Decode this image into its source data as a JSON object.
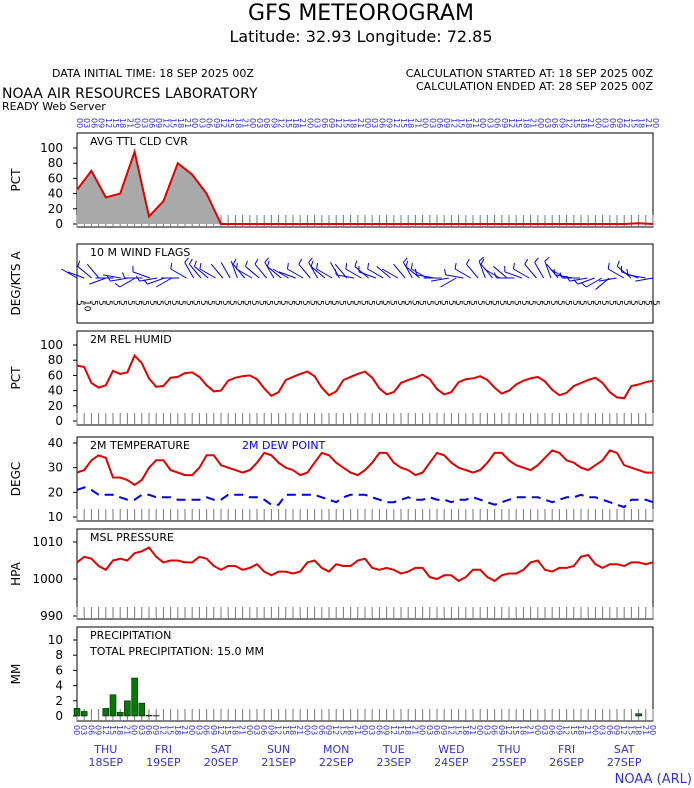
{
  "header": {
    "title": "GFS METEOROGRAM",
    "latlon": "Latitude: 32.93 Longitude:  72.85",
    "init_time": "DATA INITIAL TIME: 18 SEP 2025 00Z",
    "calc_started": "CALCULATION STARTED AT: 18 SEP 2025 00Z",
    "calc_ended": "CALCULATION ENDED AT: 28 SEP 2025 00Z",
    "lab": "NOAA AIR RESOURCES LABORATORY",
    "server": "READY Web Server",
    "credit": "NOAA (ARL)"
  },
  "days": [
    {
      "dow": "THU",
      "date": "18SEP"
    },
    {
      "dow": "FRI",
      "date": "19SEP"
    },
    {
      "dow": "SAT",
      "date": "20SEP"
    },
    {
      "dow": "SUN",
      "date": "21SEP"
    },
    {
      "dow": "MON",
      "date": "22SEP"
    },
    {
      "dow": "TUE",
      "date": "23SEP"
    },
    {
      "dow": "WED",
      "date": "24SEP"
    },
    {
      "dow": "THU",
      "date": "25SEP"
    },
    {
      "dow": "FRI",
      "date": "26SEP"
    },
    {
      "dow": "SAT",
      "date": "27SEP"
    }
  ],
  "colors": {
    "red": "#e00000",
    "blue": "#0000e0",
    "gray": "#a9a9a9",
    "green": "#007a00",
    "axis_label": "#3333cc"
  },
  "chart_data": [
    {
      "id": "cloud",
      "type": "area",
      "title": "AVG TTL CLD CVR",
      "ylabel": "PCT",
      "ylim": [
        0,
        100
      ],
      "yticks": [
        0,
        20,
        40,
        60,
        80,
        100
      ],
      "x_hours": [
        0,
        6,
        12,
        18,
        24,
        30,
        36,
        42,
        48,
        54,
        60,
        66,
        72,
        78,
        84,
        90,
        96,
        102,
        108,
        114,
        120,
        126,
        132,
        138,
        144,
        150,
        156,
        162,
        168,
        174,
        180,
        186,
        192,
        198,
        204,
        210,
        216,
        222,
        228,
        234,
        240
      ],
      "values": [
        45,
        70,
        35,
        40,
        95,
        10,
        30,
        80,
        65,
        40,
        0,
        0,
        0,
        0,
        0,
        0,
        0,
        0,
        0,
        0,
        0,
        0,
        0,
        0,
        0,
        0,
        0,
        0,
        0,
        0,
        0,
        0,
        0,
        0,
        0,
        0,
        0,
        0,
        0,
        1,
        0
      ]
    },
    {
      "id": "wind",
      "type": "barbs",
      "title": "10 M  WIND FLAGS",
      "ylabel": "DEG/KTS  A",
      "dirs": [
        300,
        290,
        310,
        320,
        250,
        270,
        280,
        260,
        240,
        270,
        290,
        260,
        250,
        240,
        270,
        300,
        330,
        320,
        310,
        300,
        320,
        330,
        340,
        320,
        300,
        310,
        320,
        330,
        310,
        300,
        290,
        300,
        320,
        330,
        310,
        300,
        330,
        320,
        280,
        300,
        310,
        290,
        300,
        310,
        300,
        320,
        330,
        310,
        300,
        280,
        270,
        260,
        240,
        280,
        300,
        320,
        340,
        320,
        300,
        310,
        270,
        290,
        300,
        320,
        330,
        340,
        320,
        300,
        280,
        270,
        260,
        250,
        240,
        230,
        260,
        300,
        310,
        290,
        280,
        260
      ],
      "speeds": [
        5,
        5,
        10,
        5,
        5,
        5,
        5,
        10,
        10,
        10,
        10,
        10,
        10,
        5,
        5,
        10,
        10,
        10,
        10,
        10,
        5,
        5,
        5,
        10,
        10,
        10,
        10,
        10,
        10,
        5,
        5,
        10,
        10,
        10,
        10,
        10,
        5,
        5,
        10,
        10,
        10,
        10,
        10,
        5,
        5,
        5,
        10,
        10,
        10,
        10,
        5,
        5,
        5,
        10,
        10,
        10,
        10,
        10,
        5,
        5,
        10,
        10,
        10,
        10,
        10,
        10,
        5,
        5,
        10,
        10,
        10,
        10,
        10,
        5,
        5,
        10,
        10,
        10,
        10,
        5
      ],
      "labels": [
        "5",
        "10",
        "5",
        "5",
        "5",
        "5",
        "5",
        "5",
        "5",
        "5",
        "5",
        "5",
        "5",
        "5",
        "5",
        "5",
        "5",
        "5",
        "5",
        "5",
        "5",
        "5",
        "5",
        "5",
        "5",
        "5",
        "5",
        "5",
        "5",
        "5",
        "5",
        "5",
        "5",
        "5",
        "5",
        "5",
        "5",
        "5",
        "5",
        "5",
        "5",
        "5",
        "5",
        "5",
        "5",
        "5",
        "5",
        "5",
        "5",
        "5",
        "5",
        "5",
        "5",
        "5",
        "5",
        "5",
        "5",
        "5",
        "5",
        "5",
        "5",
        "5",
        "5",
        "5",
        "5",
        "5",
        "5",
        "5",
        "5",
        "5",
        "5",
        "5",
        "5",
        "5",
        "5",
        "5",
        "5",
        "5",
        "5",
        "5"
      ]
    },
    {
      "id": "rh",
      "type": "line",
      "title": "2M REL HUMID",
      "ylabel": "PCT",
      "ylim": [
        0,
        100
      ],
      "yticks": [
        0,
        20,
        40,
        60,
        80,
        100
      ],
      "x_hours": [
        0,
        3,
        6,
        9,
        12,
        15,
        18,
        21,
        24,
        27,
        30,
        33,
        36,
        39,
        42,
        45,
        48,
        51,
        54,
        57,
        60,
        63,
        66,
        69,
        72,
        75,
        78,
        81,
        84,
        87,
        90,
        93,
        96,
        99,
        102,
        105,
        108,
        111,
        114,
        117,
        120,
        123,
        126,
        129,
        132,
        135,
        138,
        141,
        144,
        147,
        150,
        153,
        156,
        159,
        162,
        165,
        168,
        171,
        174,
        177,
        180,
        183,
        186,
        189,
        192,
        195,
        198,
        201,
        204,
        207,
        210,
        213,
        216,
        219,
        222,
        225,
        228,
        231,
        234,
        237,
        240
      ],
      "values": [
        73,
        71,
        50,
        44,
        47,
        66,
        62,
        64,
        86,
        76,
        56,
        45,
        46,
        57,
        58,
        63,
        64,
        58,
        47,
        39,
        40,
        53,
        57,
        59,
        60,
        55,
        43,
        33,
        38,
        54,
        58,
        62,
        65,
        59,
        44,
        34,
        39,
        54,
        58,
        62,
        65,
        57,
        43,
        35,
        38,
        50,
        54,
        57,
        61,
        55,
        42,
        35,
        38,
        51,
        55,
        56,
        59,
        54,
        44,
        36,
        40,
        48,
        53,
        56,
        58,
        52,
        41,
        34,
        37,
        46,
        50,
        54,
        57,
        50,
        38,
        31,
        30,
        46,
        48,
        51,
        53
      ]
    },
    {
      "id": "temp",
      "type": "line",
      "title": "2M TEMPERATURE",
      "title2": "2M  DEW POINT",
      "ylabel": "DEGC",
      "ylim": [
        10,
        40
      ],
      "yticks": [
        10,
        20,
        30,
        40
      ],
      "x_hours": [
        0,
        3,
        6,
        9,
        12,
        15,
        18,
        21,
        24,
        27,
        30,
        33,
        36,
        39,
        42,
        45,
        48,
        51,
        54,
        57,
        60,
        63,
        66,
        69,
        72,
        75,
        78,
        81,
        84,
        87,
        90,
        93,
        96,
        99,
        102,
        105,
        108,
        111,
        114,
        117,
        120,
        123,
        126,
        129,
        132,
        135,
        138,
        141,
        144,
        147,
        150,
        153,
        156,
        159,
        162,
        165,
        168,
        171,
        174,
        177,
        180,
        183,
        186,
        189,
        192,
        195,
        198,
        201,
        204,
        207,
        210,
        213,
        216,
        219,
        222,
        225,
        228,
        231,
        234,
        237,
        240
      ],
      "series": [
        {
          "name": "2M TEMPERATURE",
          "values": [
            28,
            29,
            33,
            35,
            34,
            26,
            26,
            25,
            23,
            25,
            30,
            33,
            33,
            29,
            28,
            27,
            27,
            30,
            35,
            35,
            31,
            30,
            29,
            28,
            29,
            32,
            36,
            35,
            32,
            30,
            29,
            27,
            28,
            32,
            36,
            35,
            32,
            30,
            28,
            27,
            29,
            32,
            36,
            36,
            32,
            30,
            29,
            27,
            28,
            32,
            36,
            35,
            32,
            30,
            29,
            28,
            29,
            32,
            36,
            36,
            33,
            31,
            30,
            29,
            31,
            34,
            37,
            36,
            33,
            32,
            30,
            29,
            31,
            33,
            37,
            36,
            31,
            30,
            29,
            28,
            28
          ]
        },
        {
          "name": "2M  DEW POINT",
          "values": [
            21,
            22,
            21,
            19,
            19,
            19,
            18,
            17,
            17,
            19,
            19,
            18,
            18,
            18,
            17,
            17,
            17,
            17,
            18,
            17,
            17,
            19,
            19,
            19,
            18,
            18,
            17,
            15,
            15,
            19,
            19,
            19,
            19,
            19,
            18,
            17,
            16,
            18,
            19,
            19,
            19,
            18,
            17,
            16,
            16,
            17,
            18,
            17,
            17,
            18,
            17,
            17,
            16,
            17,
            17,
            18,
            17,
            16,
            15,
            16,
            17,
            18,
            18,
            18,
            18,
            17,
            16,
            17,
            18,
            18,
            19,
            18,
            18,
            17,
            16,
            15,
            14,
            17,
            17,
            17,
            16
          ]
        }
      ]
    },
    {
      "id": "mslp",
      "type": "line",
      "title": "MSL PRESSURE",
      "ylabel": "HPA",
      "ylim": [
        990,
        1010
      ],
      "yticks": [
        990,
        1000,
        1010
      ],
      "x_hours": [
        0,
        3,
        6,
        9,
        12,
        15,
        18,
        21,
        24,
        27,
        30,
        33,
        36,
        39,
        42,
        45,
        48,
        51,
        54,
        57,
        60,
        63,
        66,
        69,
        72,
        75,
        78,
        81,
        84,
        87,
        90,
        93,
        96,
        99,
        102,
        105,
        108,
        111,
        114,
        117,
        120,
        123,
        126,
        129,
        132,
        135,
        138,
        141,
        144,
        147,
        150,
        153,
        156,
        159,
        162,
        165,
        168,
        171,
        174,
        177,
        180,
        183,
        186,
        189,
        192,
        195,
        198,
        201,
        204,
        207,
        210,
        213,
        216,
        219,
        222,
        225,
        228,
        231,
        234,
        237,
        240
      ],
      "values": [
        1004.5,
        1006.0,
        1005.5,
        1003.5,
        1002.5,
        1005.0,
        1005.5,
        1005.0,
        1007.0,
        1007.5,
        1008.5,
        1006.0,
        1004.5,
        1005.0,
        1005.0,
        1004.5,
        1004.5,
        1006.0,
        1005.5,
        1003.5,
        1002.5,
        1003.5,
        1003.5,
        1002.5,
        1003.0,
        1004.0,
        1002.0,
        1001.0,
        1002.0,
        1002.0,
        1001.5,
        1002.0,
        1004.5,
        1005.0,
        1003.0,
        1002.0,
        1004.0,
        1003.5,
        1003.5,
        1005.0,
        1005.5,
        1003.0,
        1002.5,
        1003.0,
        1002.5,
        1001.5,
        1002.0,
        1003.0,
        1003.0,
        1000.5,
        1000.0,
        1001.0,
        1001.0,
        999.5,
        1000.5,
        1002.5,
        1002.5,
        1000.5,
        999.5,
        1001.0,
        1001.5,
        1001.5,
        1002.5,
        1004.5,
        1005.0,
        1002.5,
        1002.0,
        1003.0,
        1003.0,
        1003.5,
        1006.0,
        1006.5,
        1004.0,
        1003.0,
        1004.0,
        1004.0,
        1003.5,
        1004.5,
        1004.5,
        1004.0,
        1004.5
      ]
    },
    {
      "id": "precip",
      "type": "bar",
      "title": "PRECIPITATION",
      "annotation": "TOTAL PRECIPITATION:  15.0 MM",
      "ylabel": "MM",
      "ylim": [
        0,
        10
      ],
      "yticks": [
        0,
        2,
        4,
        6,
        8,
        10
      ],
      "x_hours": [
        0,
        3,
        6,
        9,
        12,
        15,
        18,
        21,
        24,
        27,
        30,
        33,
        36,
        39,
        42,
        45,
        48,
        51,
        54,
        57,
        60,
        63,
        66,
        69,
        72,
        75,
        78,
        81,
        84,
        87,
        90,
        93,
        96,
        99,
        102,
        105,
        108,
        111,
        114,
        117,
        120,
        123,
        126,
        129,
        132,
        135,
        138,
        141,
        144,
        147,
        150,
        153,
        156,
        159,
        162,
        165,
        168,
        171,
        174,
        177,
        180,
        183,
        186,
        189,
        192,
        195,
        198,
        201,
        204,
        207,
        210,
        213,
        216,
        219,
        222,
        225,
        228,
        231,
        234,
        237,
        240
      ],
      "values": [
        1.0,
        0.6,
        0,
        0,
        1.0,
        2.8,
        0.5,
        2.0,
        5.0,
        1.7,
        0.1,
        0.05,
        0,
        0,
        0,
        0,
        0,
        0,
        0,
        0,
        0,
        0,
        0,
        0,
        0,
        0,
        0,
        0,
        0,
        0,
        0,
        0,
        0,
        0,
        0,
        0,
        0,
        0,
        0,
        0,
        0,
        0,
        0,
        0,
        0,
        0,
        0,
        0,
        0,
        0,
        0,
        0,
        0,
        0,
        0,
        0,
        0,
        0,
        0,
        0,
        0,
        0,
        0,
        0,
        0,
        0,
        0,
        0,
        0,
        0,
        0,
        0,
        0,
        0,
        0,
        0,
        0,
        0,
        0.3,
        0,
        0
      ]
    }
  ],
  "hour_labels": [
    "00",
    "03",
    "06",
    "09",
    "12",
    "15",
    "18",
    "21"
  ]
}
